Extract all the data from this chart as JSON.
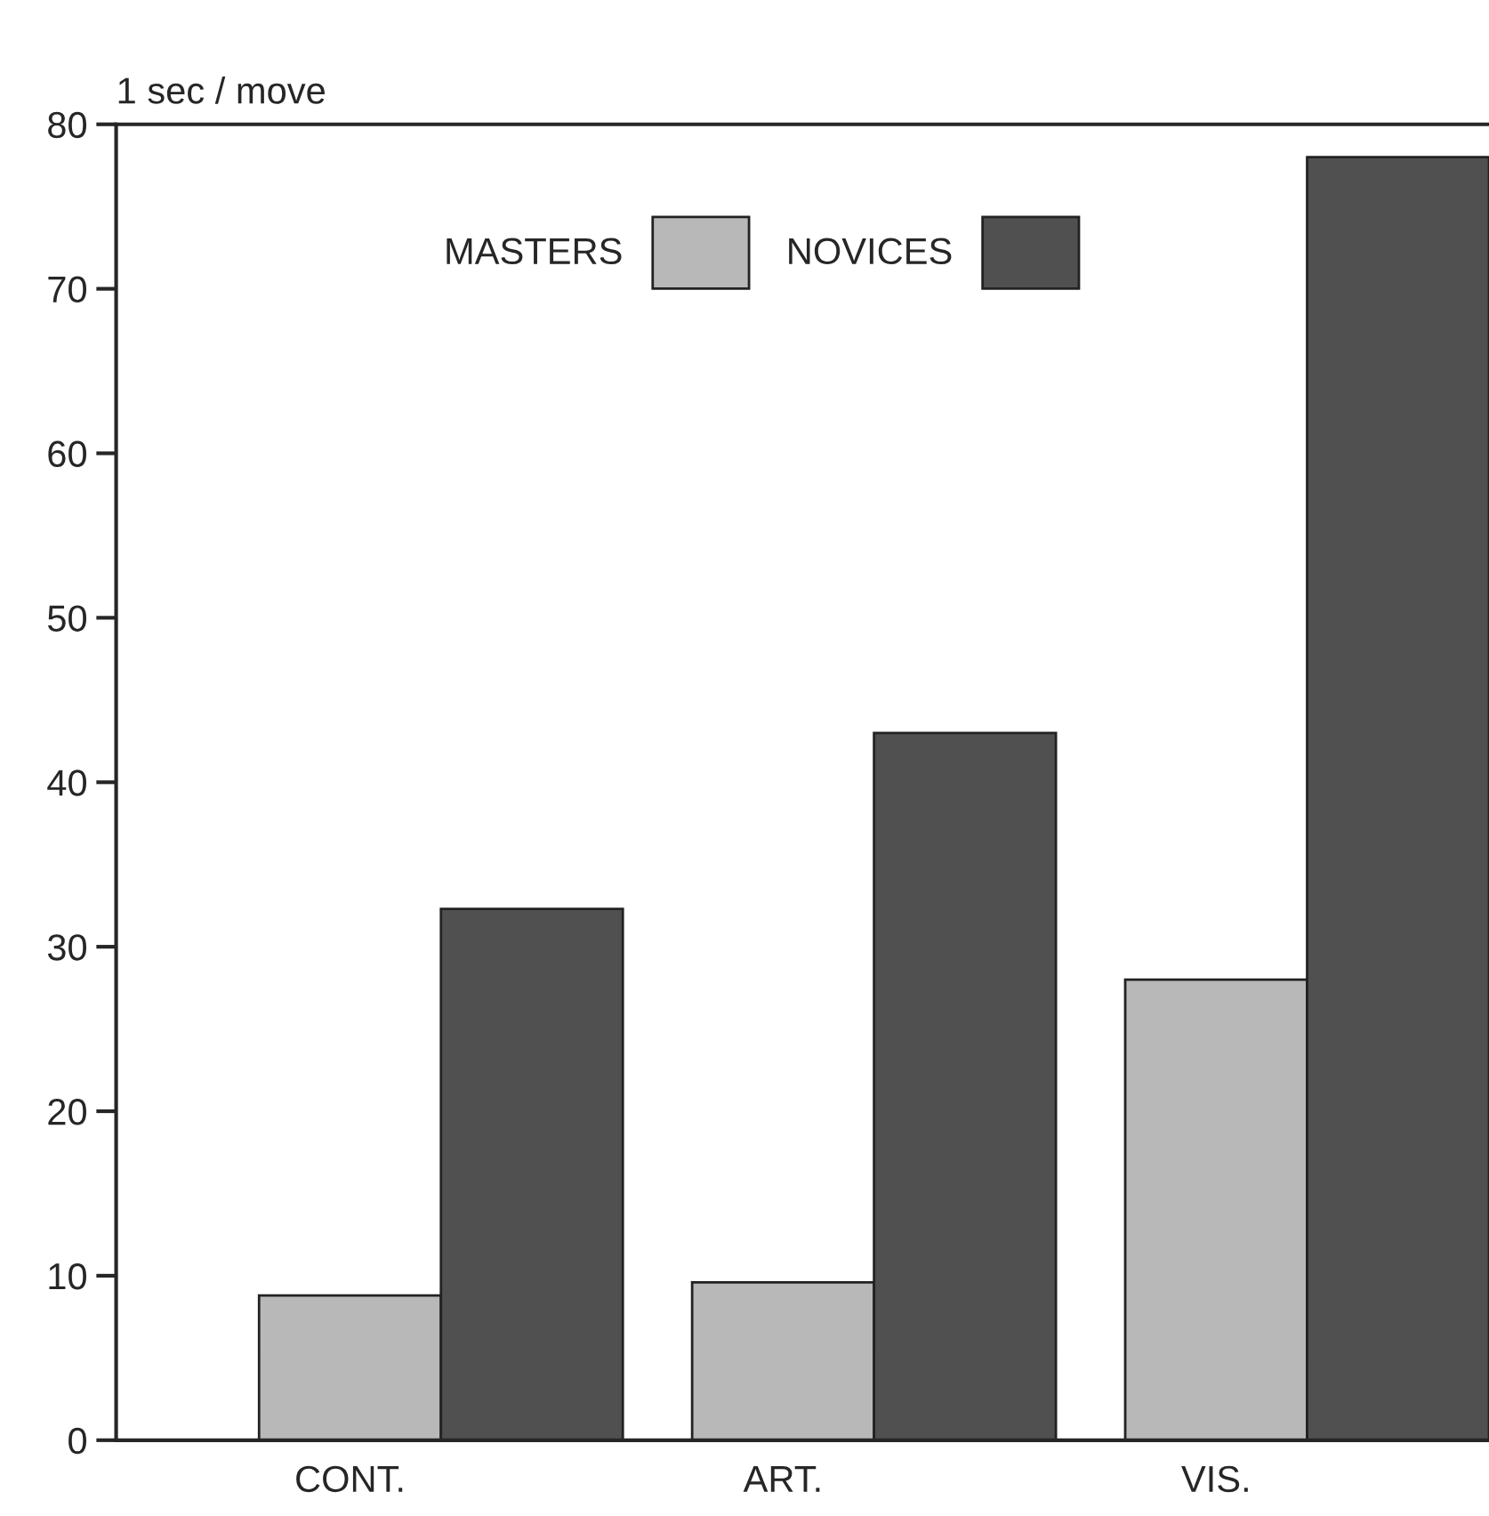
{
  "chart_data": {
    "type": "bar",
    "ylabel": "1 sec / move",
    "categories": [
      "CONT.",
      "ART.",
      "VIS."
    ],
    "series": [
      {
        "name": "MASTERS",
        "color": "#b8b8b8",
        "values": [
          8.8,
          9.6,
          28
        ]
      },
      {
        "name": "NOVICES",
        "color": "#505050",
        "values": [
          32.3,
          43,
          78
        ]
      }
    ],
    "ylim": [
      0,
      80
    ],
    "yticks": [
      0,
      10,
      20,
      30,
      40,
      50,
      60,
      70,
      80
    ],
    "grid": false,
    "legend": "top"
  }
}
